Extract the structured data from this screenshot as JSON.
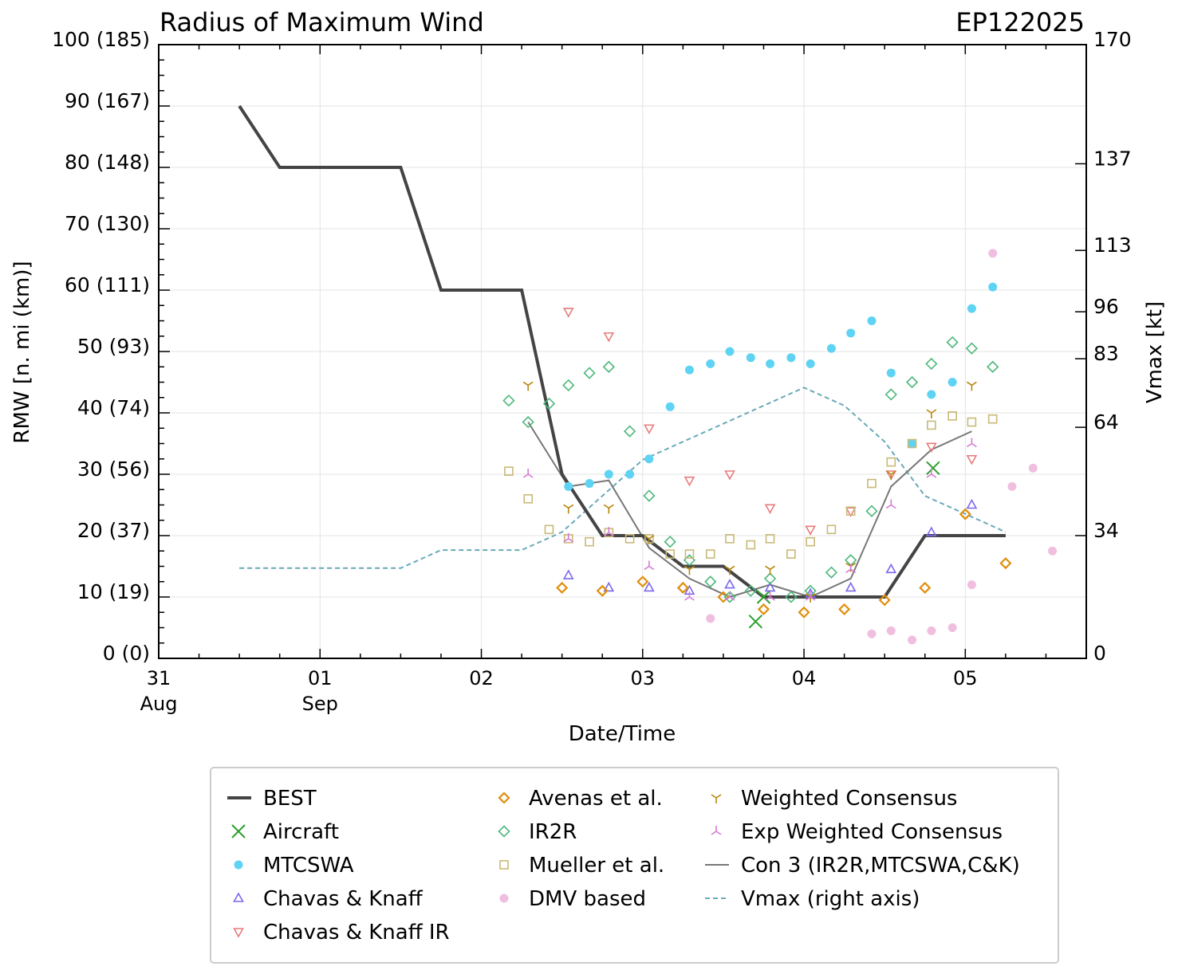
{
  "chart_data": {
    "type": "scatter",
    "title": "Radius of Maximum Wind",
    "storm_id": "EP122025",
    "xlabel": "Date/Time",
    "ylabel": "RMW [n. mi (km)]",
    "y2label": "Vmax [kt]",
    "xlim_days": [
      0,
      5.75
    ],
    "ylim": [
      0,
      100
    ],
    "y2lim": [
      0,
      170
    ],
    "grid": true,
    "legend_position": "bottom-center",
    "x_ticks": [
      {
        "day": 0,
        "label": "31",
        "sub": "Aug"
      },
      {
        "day": 1,
        "label": "01",
        "sub": "Sep"
      },
      {
        "day": 2,
        "label": "02",
        "sub": ""
      },
      {
        "day": 3,
        "label": "03",
        "sub": ""
      },
      {
        "day": 4,
        "label": "04",
        "sub": ""
      },
      {
        "day": 5,
        "label": "05",
        "sub": ""
      }
    ],
    "y_ticks": [
      {
        "value": 0,
        "label": "0 (0)"
      },
      {
        "value": 10,
        "label": "10 (19)"
      },
      {
        "value": 20,
        "label": "20 (37)"
      },
      {
        "value": 30,
        "label": "30 (56)"
      },
      {
        "value": 40,
        "label": "40 (74)"
      },
      {
        "value": 50,
        "label": "50 (93)"
      },
      {
        "value": 60,
        "label": "60 (111)"
      },
      {
        "value": 70,
        "label": "70 (130)"
      },
      {
        "value": 80,
        "label": "80 (148)"
      },
      {
        "value": 90,
        "label": "90 (167)"
      },
      {
        "value": 100,
        "label": "100 (185)"
      }
    ],
    "y2_ticks": [
      {
        "value": 0,
        "label": "0"
      },
      {
        "value": 34,
        "label": "34"
      },
      {
        "value": 64,
        "label": "64"
      },
      {
        "value": 83,
        "label": "83"
      },
      {
        "value": 96,
        "label": "96"
      },
      {
        "value": 113,
        "label": "113"
      },
      {
        "value": 137,
        "label": "137"
      },
      {
        "value": 170,
        "label": "170"
      }
    ],
    "series": [
      {
        "name": "BEST",
        "kind": "line",
        "color": "#444444",
        "points": [
          [
            0.5,
            90
          ],
          [
            0.75,
            80
          ],
          [
            1.0,
            80
          ],
          [
            1.25,
            80
          ],
          [
            1.5,
            80
          ],
          [
            1.75,
            60
          ],
          [
            2.0,
            60
          ],
          [
            2.25,
            60
          ],
          [
            2.5,
            30
          ],
          [
            2.75,
            20
          ],
          [
            3.0,
            20
          ],
          [
            3.25,
            15
          ],
          [
            3.5,
            15
          ],
          [
            3.75,
            10
          ],
          [
            4.0,
            10
          ],
          [
            4.25,
            10
          ],
          [
            4.5,
            10
          ],
          [
            4.75,
            20
          ],
          [
            5.0,
            20
          ],
          [
            5.25,
            20
          ]
        ]
      },
      {
        "name": "Aircraft",
        "kind": "marker",
        "marker": "x",
        "color": "#2ca02c",
        "points": [
          [
            3.7,
            6
          ],
          [
            3.75,
            10
          ],
          [
            4.8,
            31
          ]
        ]
      },
      {
        "name": "MTCSWA",
        "kind": "marker",
        "marker": "dot",
        "color": "#5fd3f3",
        "points": [
          [
            2.54,
            28
          ],
          [
            2.67,
            28.5
          ],
          [
            2.79,
            30
          ],
          [
            2.92,
            30
          ],
          [
            3.04,
            32.5
          ],
          [
            3.17,
            41
          ],
          [
            3.29,
            47
          ],
          [
            3.42,
            48
          ],
          [
            3.54,
            50
          ],
          [
            3.67,
            49
          ],
          [
            3.79,
            48
          ],
          [
            3.92,
            49
          ],
          [
            4.04,
            48
          ],
          [
            4.17,
            50.5
          ],
          [
            4.29,
            53
          ],
          [
            4.42,
            55
          ],
          [
            4.54,
            46.5
          ],
          [
            4.67,
            35
          ],
          [
            4.79,
            43
          ],
          [
            4.92,
            45
          ],
          [
            5.04,
            57
          ],
          [
            5.17,
            60.5
          ]
        ]
      },
      {
        "name": "Chavas & Knaff",
        "kind": "marker",
        "marker": "triangle-up",
        "color": "#7b68ee",
        "points": [
          [
            2.54,
            13.5
          ],
          [
            2.79,
            11.5
          ],
          [
            3.04,
            11.5
          ],
          [
            3.29,
            11
          ],
          [
            3.54,
            12
          ],
          [
            3.79,
            11.5
          ],
          [
            4.04,
            10.5
          ],
          [
            4.29,
            11.5
          ],
          [
            4.54,
            14.5
          ],
          [
            4.79,
            20.5
          ],
          [
            5.04,
            25
          ]
        ]
      },
      {
        "name": "Chavas & Knaff IR",
        "kind": "marker",
        "marker": "triangle-down",
        "color": "#e87b7b",
        "points": [
          [
            2.54,
            56.5
          ],
          [
            2.79,
            52.5
          ],
          [
            3.04,
            37.5
          ],
          [
            3.29,
            29
          ],
          [
            3.54,
            30
          ],
          [
            3.79,
            24.5
          ],
          [
            4.04,
            21
          ],
          [
            4.29,
            24
          ],
          [
            4.54,
            30
          ],
          [
            4.79,
            34.5
          ],
          [
            5.04,
            32.5
          ]
        ]
      },
      {
        "name": "Avenas et al.",
        "kind": "marker",
        "marker": "diamond",
        "color": "#e08e0b",
        "points": [
          [
            2.5,
            11.5
          ],
          [
            2.75,
            11
          ],
          [
            3.0,
            12.5
          ],
          [
            3.25,
            11.5
          ],
          [
            3.5,
            10
          ],
          [
            3.75,
            8
          ],
          [
            4.0,
            7.5
          ],
          [
            4.25,
            8
          ],
          [
            4.5,
            9.5
          ],
          [
            4.75,
            11.5
          ],
          [
            5.0,
            23.5
          ],
          [
            5.25,
            15.5
          ]
        ]
      },
      {
        "name": "IR2R",
        "kind": "marker",
        "marker": "diamond-open",
        "color": "#4cb87a",
        "points": [
          [
            2.17,
            42
          ],
          [
            2.29,
            38.5
          ],
          [
            2.42,
            41.5
          ],
          [
            2.54,
            44.5
          ],
          [
            2.67,
            46.5
          ],
          [
            2.79,
            47.5
          ],
          [
            2.92,
            37
          ],
          [
            3.04,
            26.5
          ],
          [
            3.17,
            19
          ],
          [
            3.29,
            16
          ],
          [
            3.42,
            12.5
          ],
          [
            3.54,
            10
          ],
          [
            3.67,
            11
          ],
          [
            3.79,
            13
          ],
          [
            3.92,
            10
          ],
          [
            4.04,
            11
          ],
          [
            4.17,
            14
          ],
          [
            4.29,
            16
          ],
          [
            4.42,
            24
          ],
          [
            4.54,
            43
          ],
          [
            4.67,
            45
          ],
          [
            4.79,
            48
          ],
          [
            4.92,
            51.5
          ],
          [
            5.04,
            50.5
          ],
          [
            5.17,
            47.5
          ]
        ]
      },
      {
        "name": "Mueller et al.",
        "kind": "marker",
        "marker": "square",
        "color": "#c8b978",
        "points": [
          [
            2.17,
            30.5
          ],
          [
            2.29,
            26
          ],
          [
            2.42,
            21
          ],
          [
            2.54,
            19.5
          ],
          [
            2.67,
            19
          ],
          [
            2.79,
            20.5
          ],
          [
            2.92,
            19.5
          ],
          [
            3.04,
            19.5
          ],
          [
            3.17,
            17
          ],
          [
            3.29,
            17
          ],
          [
            3.42,
            17
          ],
          [
            3.54,
            19.5
          ],
          [
            3.67,
            18.5
          ],
          [
            3.79,
            19.5
          ],
          [
            3.92,
            17
          ],
          [
            4.04,
            19
          ],
          [
            4.17,
            21
          ],
          [
            4.29,
            24
          ],
          [
            4.42,
            28.5
          ],
          [
            4.54,
            32
          ],
          [
            4.67,
            35
          ],
          [
            4.79,
            38
          ],
          [
            4.92,
            39.5
          ],
          [
            5.04,
            38.5
          ],
          [
            5.17,
            39
          ]
        ]
      },
      {
        "name": "DMV based",
        "kind": "marker",
        "marker": "dot",
        "color": "#f0bfe0",
        "points": [
          [
            3.42,
            6.5
          ],
          [
            4.42,
            4
          ],
          [
            4.54,
            4.5
          ],
          [
            4.67,
            3
          ],
          [
            4.79,
            4.5
          ],
          [
            4.92,
            5
          ],
          [
            5.04,
            12
          ],
          [
            5.17,
            66
          ],
          [
            5.29,
            28
          ],
          [
            5.42,
            31
          ],
          [
            5.54,
            17.5
          ]
        ]
      },
      {
        "name": "Weighted Consensus",
        "kind": "marker",
        "marker": "tri-down",
        "color": "#b8860b",
        "points": [
          [
            2.29,
            44.5
          ],
          [
            2.54,
            24.5
          ],
          [
            2.79,
            24.5
          ],
          [
            3.04,
            19.5
          ],
          [
            3.29,
            14.5
          ],
          [
            3.54,
            14.5
          ],
          [
            3.79,
            14.5
          ],
          [
            4.04,
            10
          ],
          [
            4.29,
            15
          ],
          [
            4.54,
            30
          ],
          [
            4.79,
            40
          ],
          [
            5.04,
            44.5
          ]
        ]
      },
      {
        "name": "Exp Weighted Consensus",
        "kind": "marker",
        "marker": "tri-up",
        "color": "#d57ad5",
        "points": [
          [
            2.29,
            30
          ],
          [
            2.54,
            19.5
          ],
          [
            2.79,
            20.5
          ],
          [
            3.04,
            15
          ],
          [
            3.29,
            10
          ],
          [
            3.54,
            10
          ],
          [
            3.79,
            10
          ],
          [
            4.04,
            10
          ],
          [
            4.29,
            14.5
          ],
          [
            4.54,
            25
          ],
          [
            4.79,
            30
          ],
          [
            5.04,
            35
          ]
        ]
      },
      {
        "name": "Con 3 (IR2R,MTCSWA,C&K)",
        "kind": "line",
        "color": "#777777",
        "points": [
          [
            2.29,
            38.5
          ],
          [
            2.54,
            28
          ],
          [
            2.79,
            29
          ],
          [
            3.04,
            18
          ],
          [
            3.29,
            13
          ],
          [
            3.54,
            10
          ],
          [
            3.79,
            12
          ],
          [
            4.04,
            10
          ],
          [
            4.29,
            13
          ],
          [
            4.54,
            28
          ],
          [
            4.79,
            34
          ],
          [
            5.04,
            37
          ]
        ]
      },
      {
        "name": "Vmax (right axis)",
        "kind": "dashed",
        "axis": "right",
        "color": "#6aa9b8",
        "points": [
          [
            0.5,
            25
          ],
          [
            0.75,
            25
          ],
          [
            1.0,
            25
          ],
          [
            1.25,
            25
          ],
          [
            1.5,
            25
          ],
          [
            1.75,
            30
          ],
          [
            2.0,
            30
          ],
          [
            2.25,
            30
          ],
          [
            2.5,
            35
          ],
          [
            2.75,
            45
          ],
          [
            3.0,
            55
          ],
          [
            3.25,
            60
          ],
          [
            3.5,
            65
          ],
          [
            3.75,
            70
          ],
          [
            4.0,
            75
          ],
          [
            4.25,
            70
          ],
          [
            4.5,
            60
          ],
          [
            4.75,
            45
          ],
          [
            5.0,
            40
          ],
          [
            5.25,
            35
          ]
        ]
      }
    ]
  }
}
